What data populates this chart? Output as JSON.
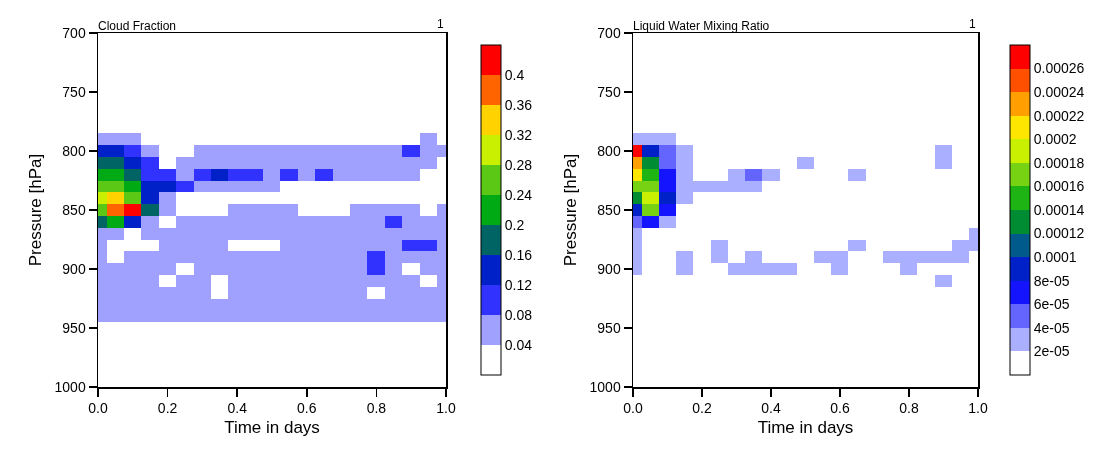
{
  "chart_data": [
    {
      "type": "heatmap",
      "title": "Cloud Fraction",
      "annotations": [
        "1"
      ],
      "xlabel": "Time in days",
      "ylabel": "Pressure [hPa]",
      "x": [
        0,
        0.05,
        0.1,
        0.15,
        0.2,
        0.25,
        0.3,
        0.35,
        0.4,
        0.45,
        0.5,
        0.55,
        0.6,
        0.65,
        0.7,
        0.75,
        0.8,
        0.85,
        0.9,
        0.95,
        1
      ],
      "y_categories": [
        "700",
        null,
        null,
        null,
        null,
        "750",
        null,
        null,
        null,
        null,
        "800",
        null,
        null,
        null,
        null,
        "850",
        null,
        null,
        null,
        null,
        "900",
        null,
        null,
        null,
        null,
        "950",
        null,
        null,
        null,
        null,
        "1000"
      ],
      "cells": [
        [
          0,
          0,
          0,
          0,
          0,
          0,
          0,
          0,
          0,
          0,
          0,
          0,
          0,
          0,
          0,
          0,
          0,
          0,
          0,
          0,
          0
        ],
        [
          0,
          0,
          0,
          0,
          0,
          0,
          0,
          0,
          0,
          0,
          0,
          0,
          0,
          0,
          0,
          0,
          0,
          0,
          0,
          0,
          0
        ],
        [
          0,
          0,
          0,
          0,
          0,
          0,
          0,
          0,
          0,
          0,
          0,
          0,
          0,
          0,
          0,
          0,
          0,
          0,
          0,
          0,
          0
        ],
        [
          0,
          0,
          0,
          0,
          0,
          0,
          0,
          0,
          0,
          0,
          0,
          0,
          0,
          0,
          0,
          0,
          0,
          0,
          0,
          0,
          0
        ],
        [
          0,
          0,
          0,
          0,
          0,
          0,
          0,
          0,
          0,
          0,
          0,
          0,
          0,
          0,
          0,
          0,
          0,
          0,
          0,
          0,
          0
        ],
        [
          0,
          0,
          0,
          0,
          0,
          0,
          0,
          0,
          0,
          0,
          0,
          0,
          0,
          0,
          0,
          0,
          0,
          0,
          0,
          0,
          0
        ],
        [
          0,
          0,
          0,
          0,
          0,
          0,
          0,
          0,
          0,
          0,
          0,
          0,
          0,
          0,
          0,
          0,
          0,
          0,
          0,
          0,
          0
        ],
        [
          0,
          0,
          0,
          0,
          0,
          0,
          0,
          0,
          0,
          0,
          0,
          0,
          0,
          0,
          0,
          0,
          0,
          0,
          0,
          0,
          0
        ],
        [
          0,
          0,
          0,
          0,
          0,
          0,
          0,
          0,
          0,
          0,
          0,
          0,
          0,
          0,
          0,
          0,
          0,
          0,
          0,
          0,
          0
        ],
        [
          0.05,
          0.05,
          0.05,
          0,
          0,
          0,
          0,
          0,
          0,
          0,
          0,
          0,
          0,
          0,
          0,
          0,
          0,
          0,
          0,
          0.05,
          0
        ],
        [
          0.14,
          0.12,
          0.1,
          0.06,
          0,
          0,
          0.05,
          0.05,
          0.06,
          0.05,
          0.05,
          0.06,
          0.05,
          0.05,
          0.05,
          0.05,
          0.05,
          0.06,
          0.1,
          0.06,
          0.05
        ],
        [
          0.18,
          0.17,
          0.14,
          0.1,
          0.02,
          0.06,
          0.07,
          0.06,
          0.06,
          0.06,
          0.06,
          0.06,
          0.06,
          0.05,
          0.05,
          0.05,
          0.06,
          0.06,
          0.06,
          0.05,
          0.02
        ],
        [
          0.22,
          0.2,
          0.17,
          0.1,
          0.09,
          0.07,
          0.09,
          0.13,
          0.09,
          0.1,
          0.06,
          0.1,
          0.07,
          0.1,
          0.07,
          0.05,
          0.05,
          0.05,
          0.05,
          0.02,
          0.02
        ],
        [
          0.26,
          0.26,
          0.2,
          0.13,
          0.13,
          0.09,
          0.06,
          0.05,
          0.05,
          0.05,
          0.05,
          0.02,
          0.02,
          0.02,
          0,
          0,
          0,
          0,
          0,
          0,
          0
        ],
        [
          0.29,
          0.33,
          0.25,
          0.13,
          0.06,
          0.02,
          0,
          0,
          0,
          0,
          0,
          0,
          0,
          0,
          0,
          0,
          0,
          0,
          0,
          0,
          0
        ],
        [
          0.26,
          0.37,
          0.41,
          0.18,
          0.05,
          0,
          0,
          0,
          0.05,
          0.05,
          0.06,
          0.05,
          0,
          0,
          0,
          0.05,
          0.05,
          0.06,
          0.05,
          0,
          0.05
        ],
        [
          0.17,
          0.21,
          0.13,
          0.06,
          0,
          0.05,
          0.05,
          0.06,
          0.05,
          0.05,
          0.05,
          0.06,
          0.05,
          0.06,
          0.05,
          0.05,
          0.06,
          0.1,
          0.05,
          0.05,
          0.06
        ],
        [
          0.06,
          0.05,
          0,
          0.05,
          0.06,
          0.06,
          0.05,
          0.06,
          0.05,
          0.05,
          0.05,
          0.06,
          0.05,
          0.06,
          0.06,
          0.05,
          0.05,
          0.05,
          0.05,
          0.05,
          0.06
        ],
        [
          0.05,
          0.02,
          0,
          0.02,
          0.05,
          0.06,
          0.06,
          0.05,
          0.02,
          0.02,
          0.02,
          0.05,
          0.06,
          0.06,
          0.05,
          0.05,
          0.06,
          0.06,
          0.1,
          0.1,
          0.06
        ],
        [
          0.05,
          0.02,
          0.05,
          0.05,
          0.06,
          0.05,
          0.06,
          0.05,
          0.06,
          0.05,
          0.05,
          0.05,
          0.05,
          0.05,
          0.05,
          0.05,
          0.1,
          0.06,
          0.05,
          0.05,
          0.05
        ],
        [
          0.05,
          0.06,
          0.05,
          0.06,
          0.05,
          0.02,
          0.05,
          0.06,
          0.06,
          0.06,
          0.05,
          0.06,
          0.05,
          0.06,
          0.05,
          0.05,
          0.1,
          0.05,
          0.02,
          0.05,
          0.05
        ],
        [
          0.05,
          0.05,
          0.06,
          0.05,
          0.02,
          0.05,
          0.05,
          0.02,
          0.05,
          0.06,
          0.05,
          0.05,
          0.06,
          0.05,
          0.05,
          0.06,
          0.05,
          0.05,
          0.05,
          0.02,
          0.05
        ],
        [
          0.05,
          0.05,
          0.05,
          0.06,
          0.05,
          0.05,
          0.05,
          0.02,
          0.05,
          0.05,
          0.06,
          0.05,
          0.05,
          0.06,
          0.05,
          0.05,
          0.02,
          0.05,
          0.05,
          0.05,
          0.06
        ],
        [
          0.05,
          0.05,
          0.05,
          0.05,
          0.05,
          0.05,
          0.05,
          0.05,
          0.05,
          0.05,
          0.05,
          0.05,
          0.05,
          0.05,
          0.05,
          0.05,
          0.05,
          0.05,
          0.05,
          0.05,
          0.05
        ],
        [
          0.05,
          0.05,
          0.05,
          0.05,
          0.05,
          0.05,
          0.05,
          0.05,
          0.05,
          0.05,
          0.05,
          0.05,
          0.05,
          0.05,
          0.05,
          0.05,
          0.05,
          0.05,
          0.05,
          0.05,
          0.05
        ],
        [
          0,
          0,
          0,
          0,
          0,
          0,
          0,
          0,
          0,
          0,
          0,
          0,
          0,
          0,
          0,
          0,
          0,
          0,
          0,
          0,
          0
        ],
        [
          0,
          0,
          0,
          0,
          0,
          0,
          0,
          0,
          0,
          0,
          0,
          0,
          0,
          0,
          0,
          0,
          0,
          0,
          0,
          0,
          0
        ],
        [
          0,
          0,
          0,
          0,
          0,
          0,
          0,
          0,
          0,
          0,
          0,
          0,
          0,
          0,
          0,
          0,
          0,
          0,
          0,
          0,
          0
        ],
        [
          0,
          0,
          0,
          0,
          0,
          0,
          0,
          0,
          0,
          0,
          0,
          0,
          0,
          0,
          0,
          0,
          0,
          0,
          0,
          0,
          0
        ],
        [
          0,
          0,
          0,
          0,
          0,
          0,
          0,
          0,
          0,
          0,
          0,
          0,
          0,
          0,
          0,
          0,
          0,
          0,
          0,
          0,
          0
        ],
        [
          0,
          0,
          0,
          0,
          0,
          0,
          0,
          0,
          0,
          0,
          0,
          0,
          0,
          0,
          0,
          0,
          0,
          0,
          0,
          0,
          0
        ]
      ],
      "colors": [
        "#ffffff",
        "#a0a0ff",
        "#3232ff",
        "#0020c8",
        "#006464",
        "#00aa14",
        "#5ac814",
        "#c8f000",
        "#ffd200",
        "#ff6400",
        "#ff0000"
      ],
      "clim": [
        0,
        0.44
      ],
      "cticks": [
        0.04,
        0.08,
        0.12,
        0.16,
        0.2,
        0.24,
        0.28,
        0.32,
        0.36,
        0.4
      ],
      "xlim": [
        0,
        1
      ],
      "xticks": [
        {
          "value": 0,
          "label": "0.0"
        },
        {
          "value": 0.2,
          "label": "0.2"
        },
        {
          "value": 0.4,
          "label": "0.4"
        },
        {
          "value": 0.6,
          "label": "0.6"
        },
        {
          "value": 0.8,
          "label": "0.8"
        },
        {
          "value": 1,
          "label": "1.0"
        }
      ]
    },
    {
      "type": "heatmap",
      "title": "Liquid Water Mixing Ratio",
      "annotations": [
        "1"
      ],
      "xlabel": "Time in days",
      "ylabel": "Pressure [hPa]",
      "x": [
        0,
        0.05,
        0.1,
        0.15,
        0.2,
        0.25,
        0.3,
        0.35,
        0.4,
        0.45,
        0.5,
        0.55,
        0.6,
        0.65,
        0.7,
        0.75,
        0.8,
        0.85,
        0.9,
        0.95,
        1
      ],
      "y_categories": [
        "700",
        null,
        null,
        null,
        null,
        "750",
        null,
        null,
        null,
        null,
        "800",
        null,
        null,
        null,
        null,
        "850",
        null,
        null,
        null,
        null,
        "900",
        null,
        null,
        null,
        null,
        "950",
        null,
        null,
        null,
        null,
        "1000"
      ],
      "cells": [
        [
          0,
          0,
          0,
          0,
          0,
          0,
          0,
          0,
          0,
          0,
          0,
          0,
          0,
          0,
          0,
          0,
          0,
          0,
          0,
          0,
          0
        ],
        [
          0,
          0,
          0,
          0,
          0,
          0,
          0,
          0,
          0,
          0,
          0,
          0,
          0,
          0,
          0,
          0,
          0,
          0,
          0,
          0,
          0
        ],
        [
          0,
          0,
          0,
          0,
          0,
          0,
          0,
          0,
          0,
          0,
          0,
          0,
          0,
          0,
          0,
          0,
          0,
          0,
          0,
          0,
          0
        ],
        [
          0,
          0,
          0,
          0,
          0,
          0,
          0,
          0,
          0,
          0,
          0,
          0,
          0,
          0,
          0,
          0,
          0,
          0,
          0,
          0,
          0
        ],
        [
          0,
          0,
          0,
          0,
          0,
          0,
          0,
          0,
          0,
          0,
          0,
          0,
          0,
          0,
          0,
          0,
          0,
          0,
          0,
          0,
          0
        ],
        [
          0,
          0,
          0,
          0,
          0,
          0,
          0,
          0,
          0,
          0,
          0,
          0,
          0,
          0,
          0,
          0,
          0,
          0,
          0,
          0,
          0
        ],
        [
          0,
          0,
          0,
          0,
          0,
          0,
          0,
          0,
          0,
          0,
          0,
          0,
          0,
          0,
          0,
          0,
          0,
          0,
          0,
          0,
          0
        ],
        [
          0,
          0,
          0,
          0,
          0,
          0,
          0,
          0,
          0,
          0,
          0,
          0,
          0,
          0,
          0,
          0,
          0,
          0,
          0,
          0,
          0
        ],
        [
          0,
          0,
          0,
          0,
          0,
          0,
          0,
          0,
          0,
          0,
          0,
          0,
          0,
          0,
          0,
          0,
          0,
          0,
          0,
          0,
          0
        ],
        [
          3e-05,
          3e-05,
          3e-05,
          0,
          0,
          0,
          0,
          0,
          0,
          0,
          0,
          0,
          0,
          0,
          0,
          0,
          0,
          0,
          0,
          0,
          0
        ],
        [
          0.00027,
          9e-05,
          5e-05,
          3e-05,
          0,
          0,
          0,
          0,
          0,
          0,
          0,
          0,
          0,
          0,
          0,
          0,
          0,
          0,
          3e-05,
          0,
          0
        ],
        [
          0.00023,
          0.00013,
          5e-05,
          3e-05,
          0,
          0,
          0,
          0,
          0,
          0,
          3e-05,
          0,
          0,
          0,
          0,
          0,
          0,
          0,
          3e-05,
          0,
          0
        ],
        [
          0.00021,
          0.00015,
          7e-05,
          3e-05,
          0,
          0,
          3e-05,
          5e-05,
          3e-05,
          0,
          0,
          0,
          0,
          3e-05,
          0,
          0,
          0,
          0,
          0,
          0,
          0
        ],
        [
          0.00017,
          0.00017,
          7e-05,
          3e-05,
          3e-05,
          3e-05,
          3e-05,
          3e-05,
          0,
          0,
          0,
          0,
          0,
          0,
          0,
          0,
          0,
          0,
          0,
          0,
          0
        ],
        [
          0.00013,
          0.00019,
          9e-05,
          3e-05,
          0,
          0,
          0,
          0,
          0,
          0,
          0,
          0,
          0,
          0,
          0,
          0,
          0,
          0,
          0,
          0,
          0
        ],
        [
          9e-05,
          0.00017,
          7e-05,
          0,
          0,
          0,
          0,
          0,
          0,
          0,
          0,
          0,
          0,
          0,
          0,
          0,
          0,
          0,
          0,
          0,
          0
        ],
        [
          5e-05,
          7e-05,
          3e-05,
          0,
          0,
          0,
          0,
          0,
          0,
          0,
          0,
          0,
          0,
          0,
          0,
          0,
          0,
          0,
          0,
          0,
          0
        ],
        [
          3e-05,
          0,
          0,
          0,
          0,
          0,
          0,
          0,
          0,
          0,
          0,
          0,
          0,
          0,
          0,
          0,
          0,
          0,
          0,
          0,
          3e-05
        ],
        [
          3e-05,
          0,
          0,
          0,
          0,
          3e-05,
          0,
          0,
          0,
          0,
          0,
          0,
          0,
          3e-05,
          0,
          0,
          0,
          0,
          0,
          3e-05,
          3e-05
        ],
        [
          3e-05,
          0,
          0,
          3e-05,
          0,
          3e-05,
          0,
          3e-05,
          0,
          0,
          0,
          3e-05,
          3e-05,
          0,
          0,
          3e-05,
          3e-05,
          3e-05,
          3e-05,
          3e-05,
          0
        ],
        [
          3e-05,
          0,
          0,
          3e-05,
          0,
          0,
          3e-05,
          3e-05,
          3e-05,
          3e-05,
          0,
          0,
          3e-05,
          0,
          0,
          0,
          3e-05,
          0,
          0,
          0,
          0
        ],
        [
          0,
          0,
          0,
          0,
          0,
          0,
          0,
          0,
          0,
          0,
          0,
          0,
          0,
          0,
          0,
          0,
          0,
          0,
          3e-05,
          0,
          0
        ],
        [
          0,
          0,
          0,
          0,
          0,
          0,
          0,
          0,
          0,
          0,
          0,
          0,
          0,
          0,
          0,
          0,
          0,
          0,
          0,
          0,
          0
        ],
        [
          0,
          0,
          0,
          0,
          0,
          0,
          0,
          0,
          0,
          0,
          0,
          0,
          0,
          0,
          0,
          0,
          0,
          0,
          0,
          0,
          0
        ],
        [
          0,
          0,
          0,
          0,
          0,
          0,
          0,
          0,
          0,
          0,
          0,
          0,
          0,
          0,
          0,
          0,
          0,
          0,
          0,
          0,
          0
        ],
        [
          0,
          0,
          0,
          0,
          0,
          0,
          0,
          0,
          0,
          0,
          0,
          0,
          0,
          0,
          0,
          0,
          0,
          0,
          0,
          0,
          0
        ],
        [
          0,
          0,
          0,
          0,
          0,
          0,
          0,
          0,
          0,
          0,
          0,
          0,
          0,
          0,
          0,
          0,
          0,
          0,
          0,
          0,
          0
        ],
        [
          0,
          0,
          0,
          0,
          0,
          0,
          0,
          0,
          0,
          0,
          0,
          0,
          0,
          0,
          0,
          0,
          0,
          0,
          0,
          0,
          0
        ],
        [
          0,
          0,
          0,
          0,
          0,
          0,
          0,
          0,
          0,
          0,
          0,
          0,
          0,
          0,
          0,
          0,
          0,
          0,
          0,
          0,
          0
        ],
        [
          0,
          0,
          0,
          0,
          0,
          0,
          0,
          0,
          0,
          0,
          0,
          0,
          0,
          0,
          0,
          0,
          0,
          0,
          0,
          0,
          0
        ],
        [
          0,
          0,
          0,
          0,
          0,
          0,
          0,
          0,
          0,
          0,
          0,
          0,
          0,
          0,
          0,
          0,
          0,
          0,
          0,
          0,
          0
        ]
      ],
      "colors": [
        "#ffffff",
        "#aab0ff",
        "#6464ff",
        "#1414ff",
        "#0020c8",
        "#005a8c",
        "#008c32",
        "#1eb414",
        "#78d214",
        "#c8f000",
        "#ffe600",
        "#ffa000",
        "#ff5000",
        "#ff0000"
      ],
      "clim": [
        0,
        0.00028
      ],
      "cticks": [
        {
          "value": 2e-05,
          "label": "2e-05"
        },
        {
          "value": 4e-05,
          "label": "4e-05"
        },
        {
          "value": 6e-05,
          "label": "6e-05"
        },
        {
          "value": 8e-05,
          "label": "8e-05"
        },
        0.0001,
        0.00012,
        0.00014,
        0.00016,
        0.00018,
        0.0002,
        0.00022,
        0.00024,
        0.00026
      ],
      "xlim": [
        0,
        1
      ],
      "xticks": [
        {
          "value": 0,
          "label": "0.0"
        },
        {
          "value": 0.2,
          "label": "0.2"
        },
        {
          "value": 0.4,
          "label": "0.4"
        },
        {
          "value": 0.6,
          "label": "0.6"
        },
        {
          "value": 0.8,
          "label": "0.8"
        },
        {
          "value": 1,
          "label": "1.0"
        }
      ]
    }
  ]
}
